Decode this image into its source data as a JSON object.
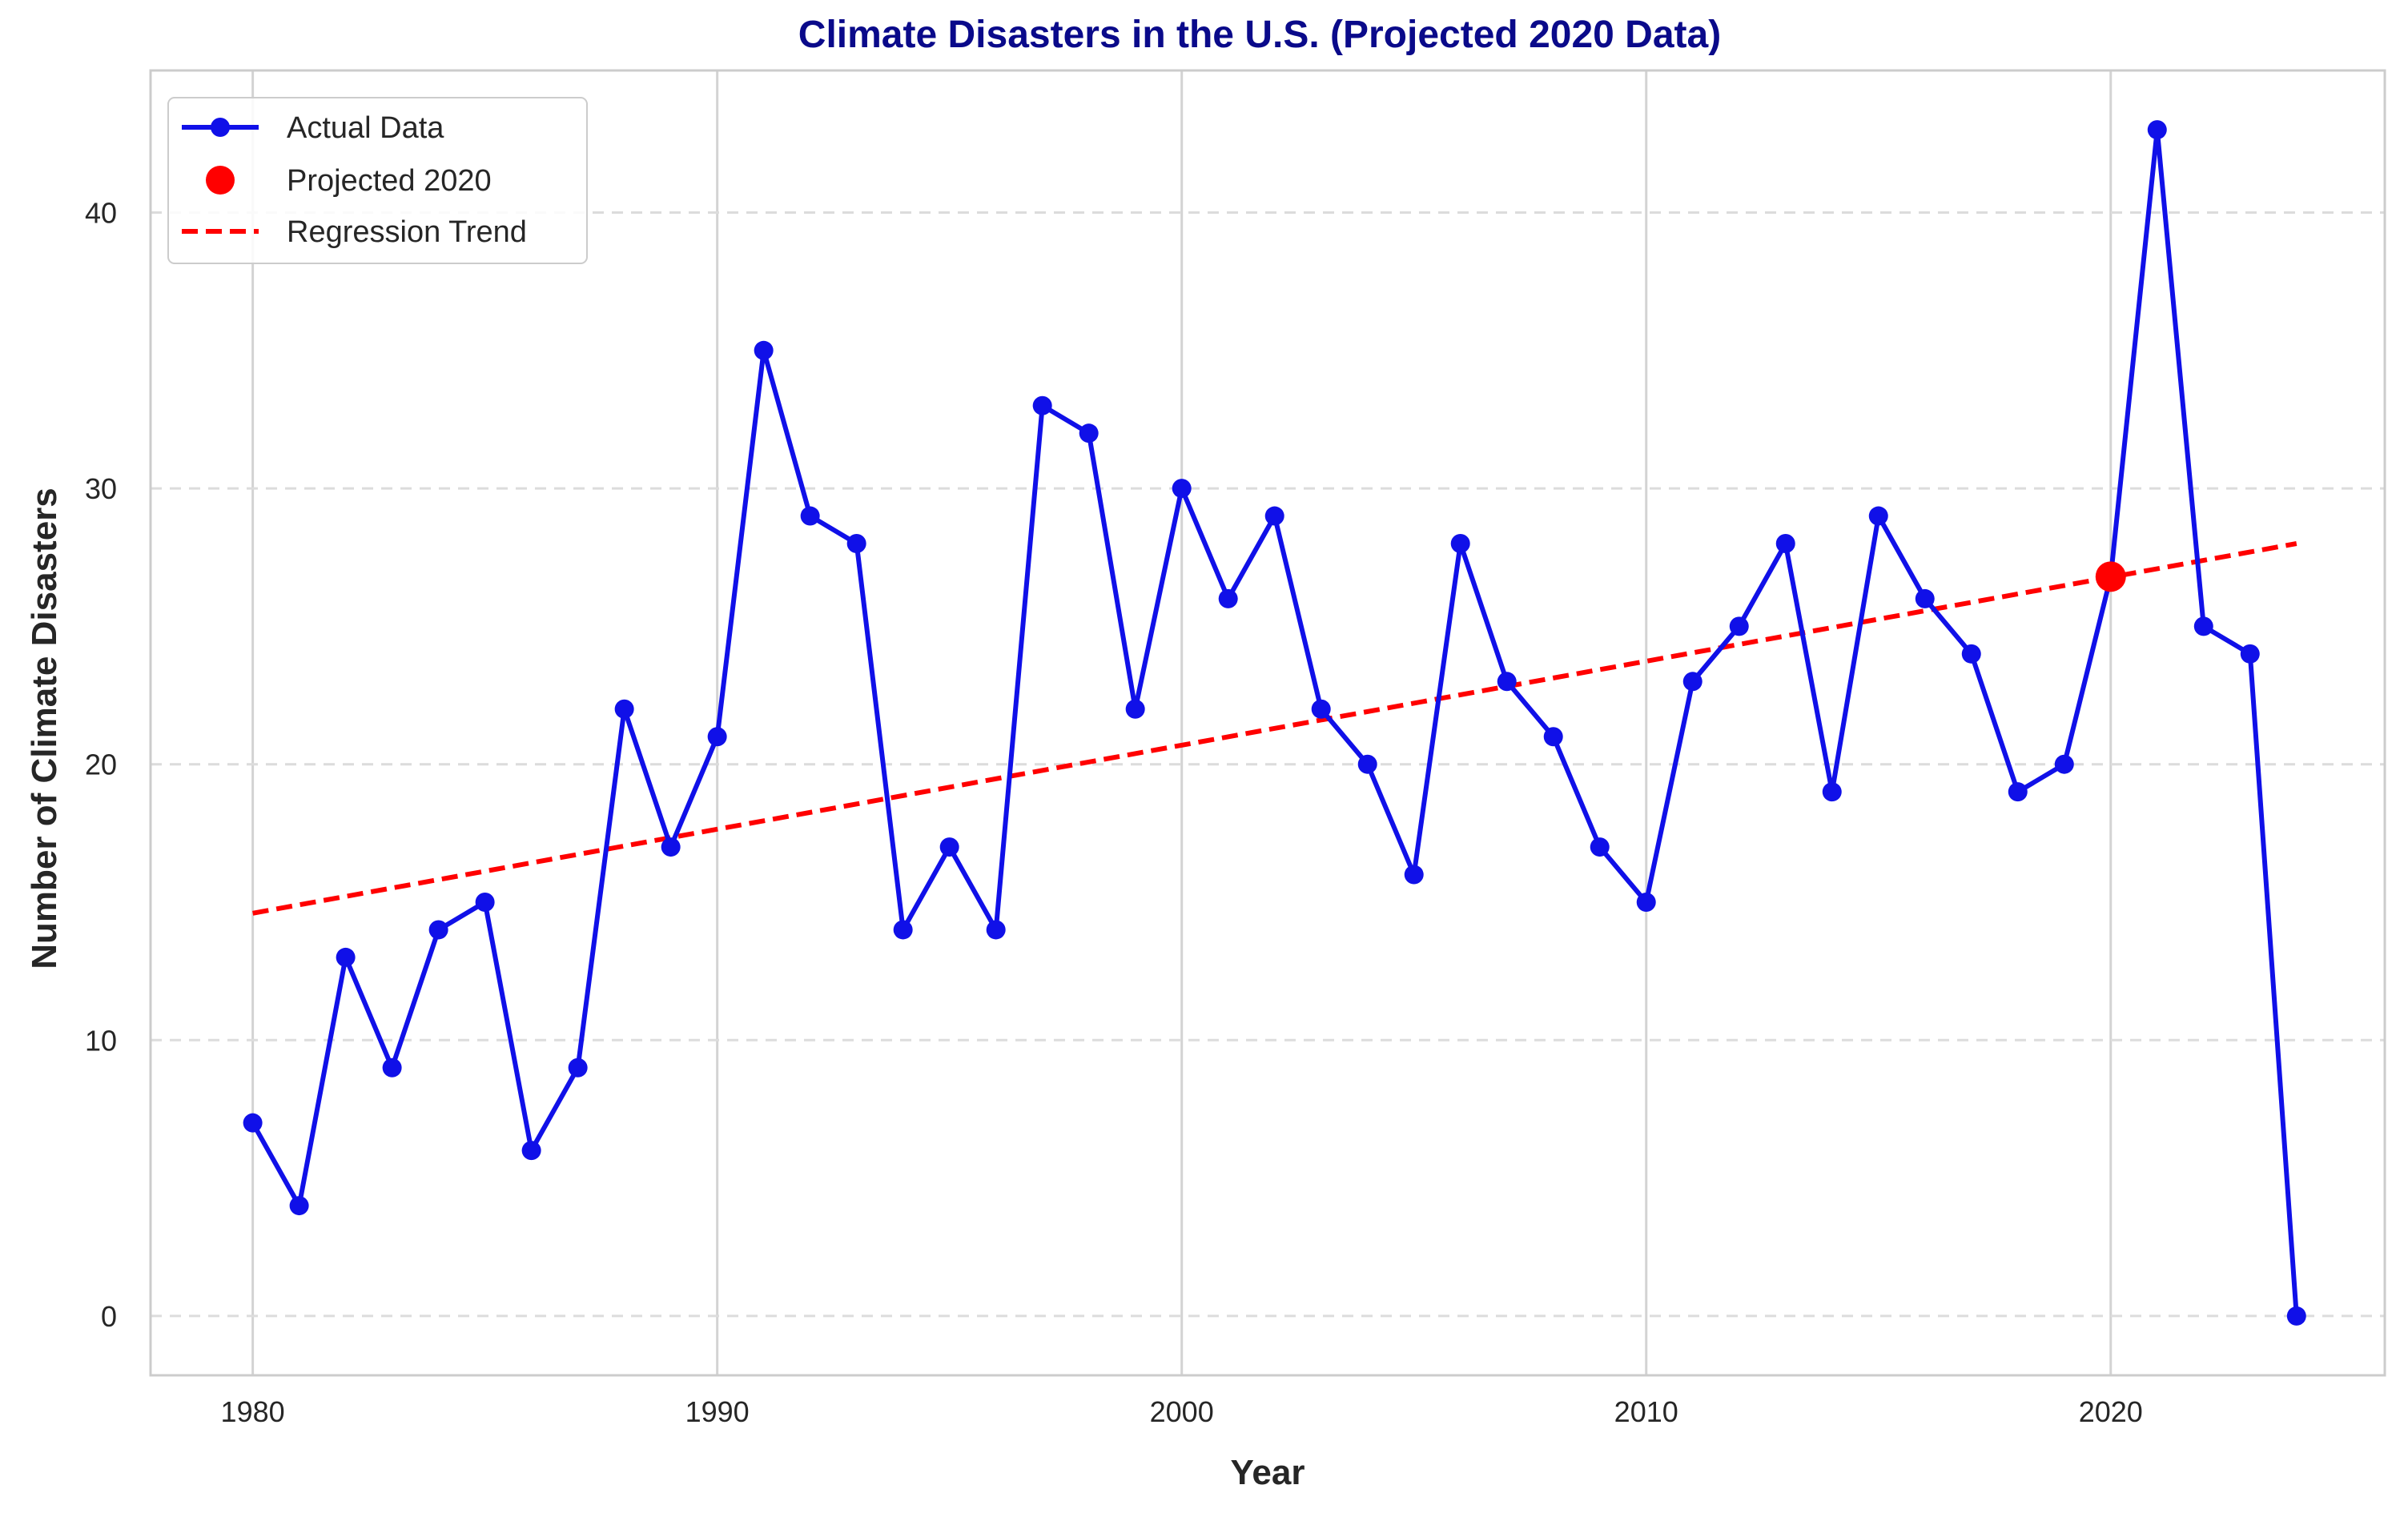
{
  "chart_data": {
    "type": "line",
    "title": "Climate Disasters in the U.S. (Projected 2020 Data)",
    "xlabel": "Year",
    "ylabel": "Number of Climate Disasters",
    "xlim": [
      1977.8,
      2025.9
    ],
    "ylim": [
      -2.15,
      45.15
    ],
    "x_ticks": [
      1980,
      1990,
      2000,
      2010,
      2020
    ],
    "y_ticks": [
      0,
      10,
      20,
      30,
      40
    ],
    "grid": true,
    "legend_position": "top-left",
    "colors": {
      "title": "#0a0a8a",
      "actual": "#1010e8",
      "projected": "#ff0000",
      "trend": "#ff0000",
      "grid": "#d3d3d3",
      "axis_text": "#262626",
      "spine": "#cccccc"
    },
    "series": [
      {
        "name": "Actual Data",
        "style": "line-with-markers",
        "x": [
          1980,
          1981,
          1982,
          1983,
          1984,
          1985,
          1986,
          1987,
          1988,
          1989,
          1990,
          1991,
          1992,
          1993,
          1994,
          1995,
          1996,
          1997,
          1998,
          1999,
          2000,
          2001,
          2002,
          2003,
          2004,
          2005,
          2006,
          2007,
          2008,
          2009,
          2010,
          2011,
          2012,
          2013,
          2014,
          2015,
          2016,
          2017,
          2018,
          2019,
          2020,
          2021,
          2022,
          2023,
          2024
        ],
        "y": [
          7,
          4,
          13,
          9,
          14,
          15,
          6,
          9,
          22,
          17,
          21,
          35,
          29,
          28,
          14,
          17,
          14,
          33,
          32,
          22,
          30,
          26,
          29,
          22,
          20,
          16,
          28,
          23,
          21,
          17,
          15,
          23,
          25,
          28,
          19,
          29,
          26,
          24,
          19,
          20,
          26.8,
          43,
          25,
          24,
          0
        ]
      },
      {
        "name": "Projected 2020",
        "style": "marker",
        "x": [
          2020
        ],
        "y": [
          26.8
        ]
      },
      {
        "name": "Regression Trend",
        "style": "dashed-line",
        "x": [
          1980,
          2024
        ],
        "y": [
          14.6,
          28.0
        ]
      }
    ]
  }
}
